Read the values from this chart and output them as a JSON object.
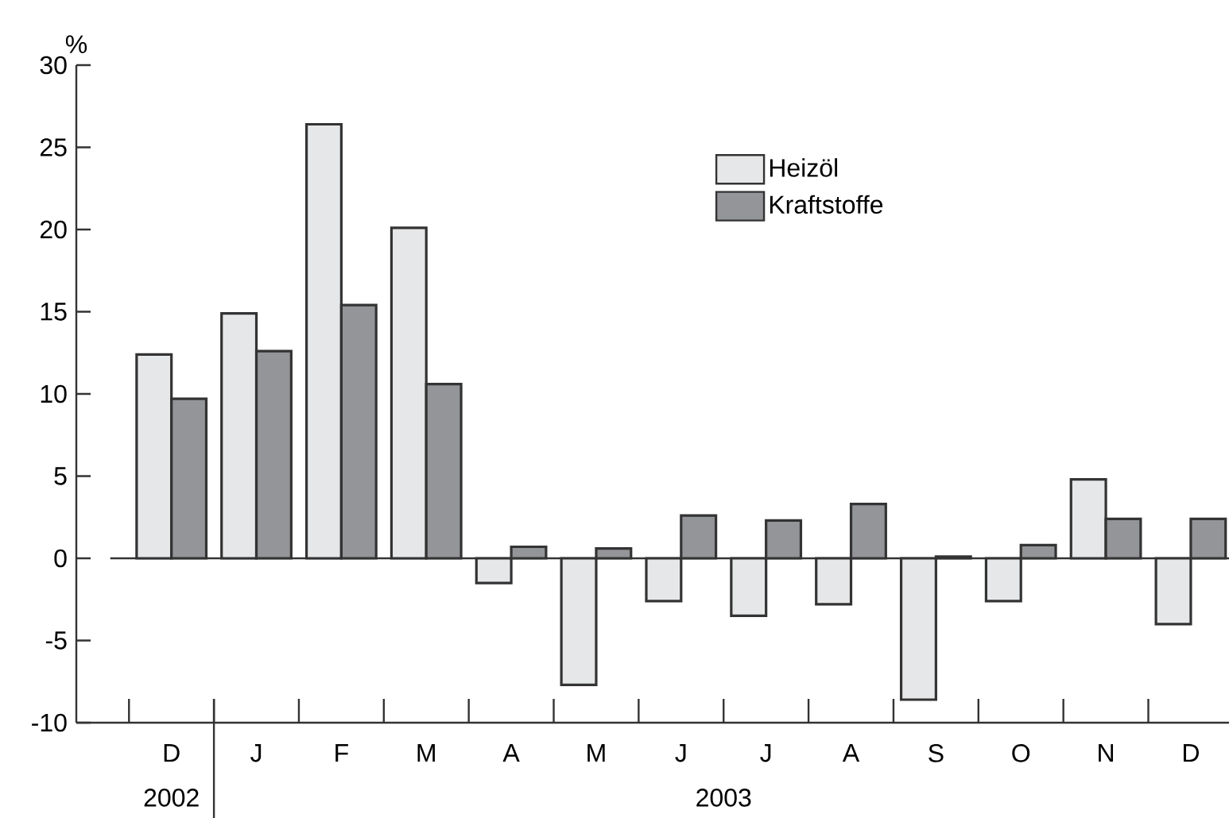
{
  "chart_data": {
    "type": "bar",
    "ylabel": "%",
    "categories": [
      "D",
      "J",
      "F",
      "M",
      "A",
      "M",
      "J",
      "J",
      "A",
      "S",
      "O",
      "N",
      "D"
    ],
    "series": [
      {
        "name": "Heizöl",
        "color": "#e6e7e8",
        "values": [
          12.4,
          14.9,
          26.4,
          20.1,
          -1.5,
          -7.7,
          -2.6,
          -3.5,
          -2.8,
          -8.6,
          -2.6,
          4.8,
          -4.0
        ]
      },
      {
        "name": "Kraftstoffe",
        "color": "#939598",
        "values": [
          9.7,
          12.6,
          15.4,
          10.6,
          0.7,
          0.6,
          2.6,
          2.3,
          3.3,
          0.1,
          0.8,
          2.4,
          2.4
        ]
      }
    ],
    "ylim": [
      -10,
      30
    ],
    "yticks": [
      -10,
      -5,
      0,
      5,
      10,
      15,
      20,
      25,
      30
    ],
    "legend": "top right",
    "grid": false,
    "ref_lines": [
      {
        "axis": "y",
        "value": 0
      }
    ],
    "annotations": [
      "2002",
      "2003"
    ]
  }
}
